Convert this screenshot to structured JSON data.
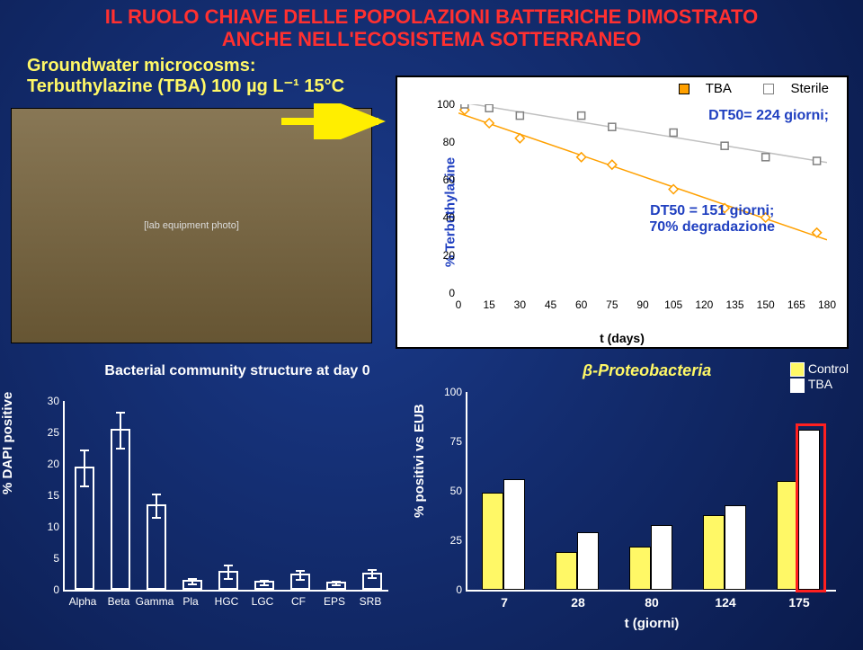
{
  "title_line1": "IL RUOLO CHIAVE DELLE POPOLAZIONI BATTERICHE DIMOSTRATO",
  "title_line2": "ANCHE NELL'ECOSISTEMA SOTTERRANEO",
  "subtitle_line1": "Groundwater microcosms:",
  "subtitle_line2": "Terbuthylazine (TBA) 100 µg L⁻¹ 15°C",
  "chart1": {
    "type": "scatter-line",
    "y_label": "% Terbuthylazine",
    "x_label": "t (days)",
    "legend": [
      {
        "label": "TBA",
        "color": "#ffa000"
      },
      {
        "label": "Sterile",
        "color": "#ffffff",
        "border": "#808080"
      }
    ],
    "annot_top": "DT50= 224 giorni;",
    "annot_bottom_l1": "DT50 = 151 giorni;",
    "annot_bottom_l2": "70% degradazione",
    "xlim": [
      0,
      180
    ],
    "ylim": [
      0,
      100
    ],
    "xticks": [
      0,
      15,
      30,
      45,
      60,
      75,
      90,
      105,
      120,
      135,
      150,
      165,
      180
    ],
    "yticks": [
      0,
      20,
      40,
      60,
      80,
      100
    ],
    "series": [
      {
        "name": "TBA",
        "color": "#ffa000",
        "marker": "diamond",
        "points": [
          [
            3,
            97
          ],
          [
            15,
            90
          ],
          [
            30,
            82
          ],
          [
            60,
            72
          ],
          [
            75,
            68
          ],
          [
            105,
            55
          ],
          [
            130,
            45
          ],
          [
            150,
            40
          ],
          [
            175,
            32
          ]
        ]
      },
      {
        "name": "Sterile",
        "color": "#c0c0c0",
        "marker": "square",
        "points": [
          [
            3,
            100
          ],
          [
            15,
            98
          ],
          [
            30,
            94
          ],
          [
            60,
            94
          ],
          [
            75,
            88
          ],
          [
            105,
            85
          ],
          [
            130,
            78
          ],
          [
            150,
            72
          ],
          [
            175,
            70
          ]
        ]
      }
    ]
  },
  "chart2": {
    "type": "bar",
    "title": "Bacterial community structure at day 0",
    "y_label": "% DAPI positive",
    "ylim": [
      0,
      30
    ],
    "yticks": [
      0,
      5,
      10,
      15,
      20,
      25,
      30
    ],
    "bar_border": "#ffffff",
    "bar_fill": "transparent",
    "categories": [
      "Alpha",
      "Beta",
      "Gamma",
      "Pla",
      "HGC",
      "LGC",
      "CF",
      "EPS",
      "SRB"
    ],
    "values": [
      19,
      25,
      13,
      1,
      2.5,
      0.8,
      2,
      0.7,
      2.2
    ],
    "errors": [
      3,
      3,
      2,
      0.6,
      1.2,
      0.5,
      0.8,
      0.4,
      0.8
    ]
  },
  "chart3": {
    "type": "grouped-bar",
    "title": "β-Proteobacteria",
    "y_label": "% positivi vs EUB",
    "x_label": "t (giorni)",
    "ylim": [
      0,
      100
    ],
    "yticks": [
      0,
      25,
      50,
      75,
      100
    ],
    "legend": [
      {
        "label": "Control",
        "color": "#fff866"
      },
      {
        "label": "TBA",
        "color": "#ffffff"
      }
    ],
    "categories": [
      "7",
      "28",
      "80",
      "124",
      "175"
    ],
    "control": [
      48,
      18,
      21,
      37,
      54
    ],
    "tba": [
      55,
      28,
      32,
      42,
      80
    ]
  },
  "colors": {
    "title": "#ff3030",
    "subtitle": "#fff866",
    "annot": "#2040c0",
    "bg_dark": "#0a1a4a",
    "bg_light": "#1a3a8a"
  }
}
